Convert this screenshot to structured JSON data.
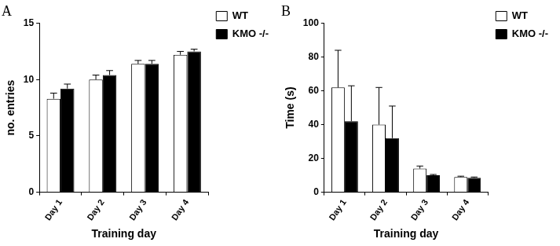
{
  "chart_data": [
    {
      "type": "bar",
      "title": "A",
      "x_label": "Training day",
      "y_label": "no. entries",
      "categories": [
        "Day 1",
        "Day 2",
        "Day 3",
        "Day 4"
      ],
      "series": [
        {
          "name": "WT",
          "color": "#ffffff",
          "values": [
            8.3,
            10.0,
            11.4,
            12.2
          ],
          "errors": [
            0.5,
            0.4,
            0.3,
            0.3
          ]
        },
        {
          "name": "KMO -/-",
          "color": "#000000",
          "values": [
            9.2,
            10.4,
            11.4,
            12.5
          ],
          "errors": [
            0.4,
            0.4,
            0.3,
            0.2
          ]
        }
      ],
      "ylim": [
        0,
        15
      ],
      "yticks": [
        0,
        5,
        10,
        15
      ],
      "grid": false,
      "legend": "right"
    },
    {
      "type": "bar",
      "title": "B",
      "x_label": "Training day",
      "y_label": "Time (s)",
      "categories": [
        "Day 1",
        "Day 2",
        "Day 3",
        "Day 4"
      ],
      "series": [
        {
          "name": "WT",
          "color": "#ffffff",
          "values": [
            62,
            40,
            14,
            9
          ],
          "errors": [
            22,
            22,
            1.5,
            0.5
          ]
        },
        {
          "name": "KMO -/-",
          "color": "#000000",
          "values": [
            42,
            32,
            10,
            8.5
          ],
          "errors": [
            21,
            19,
            0.5,
            0.5
          ]
        }
      ],
      "ylim": [
        0,
        100
      ],
      "yticks": [
        0,
        20,
        40,
        60,
        80,
        100
      ],
      "grid": false,
      "legend": "right"
    }
  ]
}
